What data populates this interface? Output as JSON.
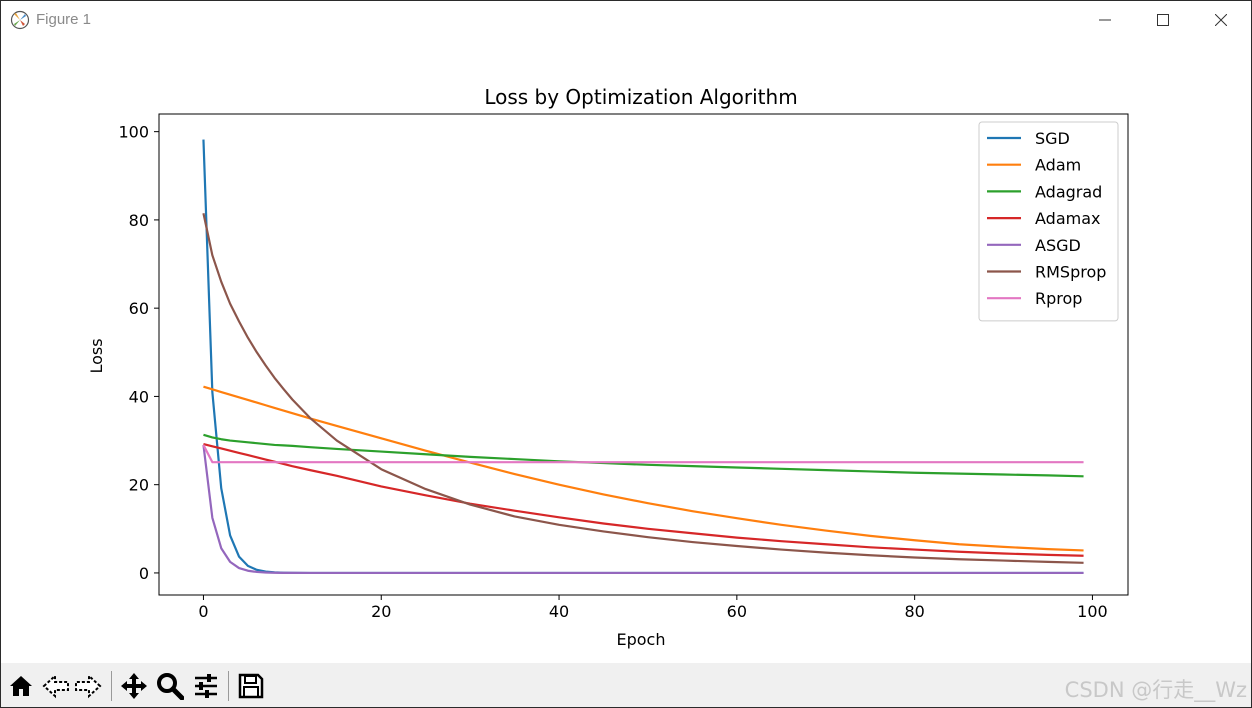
{
  "window": {
    "title": "Figure 1",
    "controls": {
      "minimize": "—",
      "maximize": "☐",
      "close": "✕"
    }
  },
  "toolbar": {
    "buttons": [
      {
        "name": "home-icon",
        "tooltip": "Reset original view"
      },
      {
        "name": "back-icon",
        "tooltip": "Back to previous view"
      },
      {
        "name": "forward-icon",
        "tooltip": "Forward to next view"
      },
      {
        "name": "pan-icon",
        "tooltip": "Pan axes"
      },
      {
        "name": "zoom-icon",
        "tooltip": "Zoom to rectangle"
      },
      {
        "name": "configure-subplots-icon",
        "tooltip": "Configure subplots"
      },
      {
        "name": "save-icon",
        "tooltip": "Save the figure"
      }
    ],
    "watermark": "CSDN @行走__Wz"
  },
  "chart_data": {
    "type": "line",
    "title": "Loss by Optimization Algorithm",
    "xlabel": "Epoch",
    "ylabel": "Loss",
    "xlim": [
      -5,
      104
    ],
    "ylim": [
      -5,
      104
    ],
    "xticks": [
      0,
      20,
      40,
      60,
      80,
      100
    ],
    "yticks": [
      0,
      20,
      40,
      60,
      80,
      100
    ],
    "grid": false,
    "legend_position": "top-right",
    "x": [
      0,
      1,
      2,
      3,
      4,
      5,
      6,
      7,
      8,
      9,
      10,
      12,
      15,
      20,
      25,
      30,
      35,
      40,
      45,
      50,
      55,
      60,
      65,
      70,
      75,
      80,
      85,
      90,
      95,
      99
    ],
    "series": [
      {
        "name": "SGD",
        "color": "#1f77b4",
        "values": [
          98.2,
          41.0,
          19.2,
          8.5,
          3.7,
          1.6,
          0.7,
          0.3,
          0.13,
          0.06,
          0.03,
          0.0,
          0.0,
          0.0,
          0.0,
          0.0,
          0.0,
          0.0,
          0.0,
          0.0,
          0.0,
          0.0,
          0.0,
          0.0,
          0.0,
          0.0,
          0.0,
          0.0,
          0.0,
          0.0
        ]
      },
      {
        "name": "Adam",
        "color": "#ff7f0e",
        "values": [
          42.2,
          41.6,
          41.0,
          40.4,
          39.8,
          39.2,
          38.6,
          38.0,
          37.4,
          36.8,
          36.2,
          35.0,
          33.3,
          30.5,
          27.7,
          25.0,
          22.4,
          20.0,
          17.8,
          15.8,
          14.0,
          12.4,
          10.9,
          9.6,
          8.4,
          7.4,
          6.5,
          5.9,
          5.4,
          5.1
        ]
      },
      {
        "name": "Adagrad",
        "color": "#2ca02c",
        "values": [
          31.3,
          30.7,
          30.3,
          30.0,
          29.8,
          29.6,
          29.4,
          29.2,
          29.0,
          28.9,
          28.8,
          28.5,
          28.1,
          27.5,
          26.9,
          26.3,
          25.8,
          25.3,
          24.9,
          24.5,
          24.2,
          23.9,
          23.6,
          23.3,
          23.0,
          22.7,
          22.5,
          22.3,
          22.1,
          21.9
        ]
      },
      {
        "name": "Adamax",
        "color": "#d62728",
        "values": [
          29.2,
          28.7,
          28.2,
          27.7,
          27.2,
          26.7,
          26.2,
          25.7,
          25.2,
          24.7,
          24.2,
          23.3,
          22.0,
          19.6,
          17.6,
          15.7,
          14.1,
          12.6,
          11.2,
          10.0,
          9.0,
          8.0,
          7.2,
          6.5,
          5.8,
          5.3,
          4.8,
          4.4,
          4.1,
          3.9
        ]
      },
      {
        "name": "ASGD",
        "color": "#9467bd",
        "values": [
          29.0,
          12.5,
          5.6,
          2.5,
          1.1,
          0.5,
          0.22,
          0.1,
          0.04,
          0.02,
          0.01,
          0.0,
          0.0,
          0.0,
          0.0,
          0.0,
          0.0,
          0.0,
          0.0,
          0.0,
          0.0,
          0.0,
          0.0,
          0.0,
          0.0,
          0.0,
          0.0,
          0.0,
          0.0,
          0.0
        ]
      },
      {
        "name": "RMSprop",
        "color": "#8c564b",
        "values": [
          81.5,
          72.0,
          66.0,
          61.0,
          57.0,
          53.3,
          50.0,
          47.0,
          44.2,
          41.7,
          39.3,
          35.1,
          30.0,
          23.5,
          19.0,
          15.5,
          12.8,
          10.9,
          9.4,
          8.1,
          7.0,
          6.1,
          5.3,
          4.6,
          4.0,
          3.5,
          3.1,
          2.8,
          2.5,
          2.3
        ]
      },
      {
        "name": "Rprop",
        "color": "#e377c2",
        "values": [
          29.0,
          25.1,
          25.1,
          25.1,
          25.1,
          25.1,
          25.1,
          25.1,
          25.1,
          25.1,
          25.1,
          25.1,
          25.1,
          25.1,
          25.1,
          25.1,
          25.1,
          25.1,
          25.1,
          25.1,
          25.1,
          25.1,
          25.1,
          25.1,
          25.1,
          25.1,
          25.1,
          25.1,
          25.1,
          25.1
        ]
      }
    ]
  }
}
